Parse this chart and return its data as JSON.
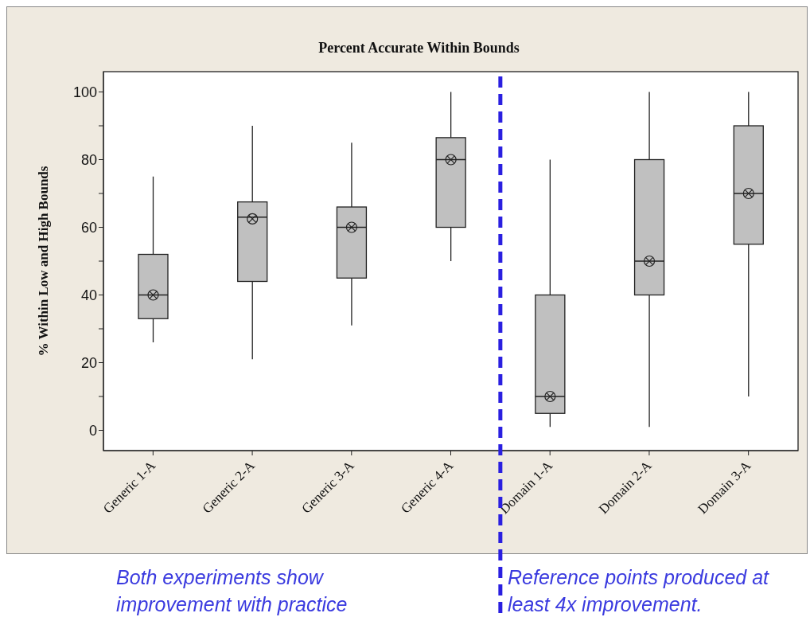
{
  "chart_data": {
    "type": "box",
    "title": "Percent Accurate Within Bounds",
    "ylabel": "% Within Low and High Bounds",
    "categories": [
      "Generic 1-A",
      "Generic 2-A",
      "Generic 3-A",
      "Generic 4-A",
      "Domain 1-A",
      "Domain 2-A",
      "Domain 3-A"
    ],
    "color": "#c0c0c0",
    "boxes": [
      {
        "low": 26,
        "q1": 33,
        "median": 40,
        "q3": 52,
        "high": 75,
        "mean": 40
      },
      {
        "low": 21,
        "q1": 44,
        "median": 63,
        "q3": 67.5,
        "high": 90,
        "mean": 62.5
      },
      {
        "low": 31,
        "q1": 45,
        "median": 60,
        "q3": 66,
        "high": 85,
        "mean": 60
      },
      {
        "low": 50,
        "q1": 60,
        "median": 80,
        "q3": 86.5,
        "high": 100,
        "mean": 80
      },
      {
        "low": 1,
        "q1": 5,
        "median": 10,
        "q3": 40,
        "high": 80,
        "mean": 10
      },
      {
        "low": 1,
        "q1": 40,
        "median": 50,
        "q3": 80,
        "high": 100,
        "mean": 50
      },
      {
        "low": 10,
        "q1": 55,
        "median": 70,
        "q3": 90,
        "high": 100,
        "mean": 70
      }
    ],
    "ylim": [
      -6,
      106
    ],
    "yticks": [
      0,
      {
        "value": 10,
        "label": null
      },
      20,
      {
        "value": 30,
        "label": null
      },
      40,
      {
        "value": 50,
        "label": null
      },
      60,
      {
        "value": 70,
        "label": null
      },
      80,
      {
        "value": 90,
        "label": null
      },
      100
    ],
    "annotations": [
      "Both experiments show improvement with practice",
      "Reference points produced at least 4x improvement."
    ]
  }
}
